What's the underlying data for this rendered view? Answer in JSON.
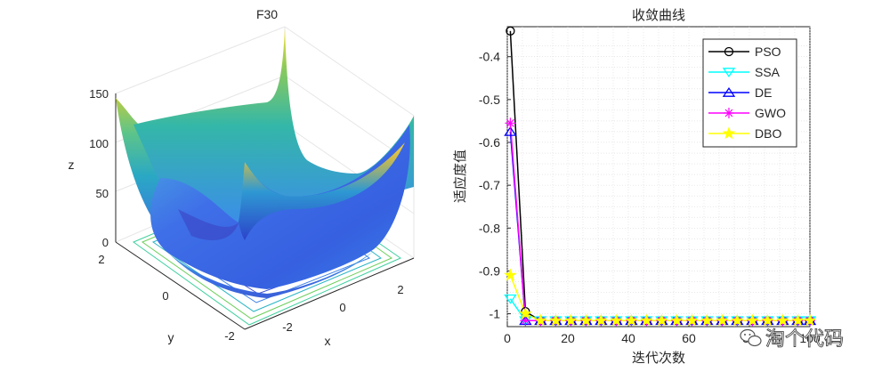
{
  "chart_data": [
    {
      "type": "surface3d",
      "title": "F30",
      "xlabel": "x",
      "ylabel": "y",
      "zlabel": "z",
      "x_ticks": [
        "-2",
        "0",
        "2"
      ],
      "y_ticks": [
        "-2",
        "0",
        "2"
      ],
      "z_ticks": [
        "0",
        "50",
        "100",
        "150"
      ],
      "xlim": [
        -3,
        3
      ],
      "ylim": [
        -3,
        3
      ],
      "zlim": [
        0,
        160
      ],
      "colormap": "parula",
      "contour_base": true
    },
    {
      "type": "line",
      "title": "收敛曲线",
      "xlabel": "迭代次数",
      "ylabel": "适应度值",
      "xlim": [
        0,
        100
      ],
      "ylim": [
        -1.03,
        -0.33
      ],
      "x_ticks": [
        "0",
        "20",
        "40",
        "60",
        "80",
        "100"
      ],
      "y_ticks": [
        "-0.4",
        "-0.5",
        "-0.6",
        "-0.7",
        "-0.8",
        "-0.9",
        "-1"
      ],
      "x_tick_values": [
        0,
        20,
        40,
        60,
        80,
        100
      ],
      "y_tick_values": [
        -0.4,
        -0.5,
        -0.6,
        -0.7,
        -0.8,
        -0.9,
        -1
      ],
      "grid": true,
      "legend_position": "top-right",
      "x": [
        1,
        6,
        11,
        16,
        21,
        26,
        31,
        36,
        41,
        46,
        51,
        56,
        61,
        66,
        71,
        76,
        81,
        86,
        91,
        96,
        100
      ],
      "series": [
        {
          "name": "PSO",
          "color": "#000000",
          "marker": "circle",
          "values": [
            -0.34,
            -0.995,
            -1.016,
            -1.016,
            -1.016,
            -1.016,
            -1.016,
            -1.016,
            -1.016,
            -1.016,
            -1.016,
            -1.016,
            -1.016,
            -1.016,
            -1.016,
            -1.016,
            -1.016,
            -1.016,
            -1.016,
            -1.016,
            -1.016
          ]
        },
        {
          "name": "SSA",
          "color": "#00ffff",
          "marker": "triangle-down",
          "values": [
            -0.965,
            -1.016,
            -1.016,
            -1.016,
            -1.016,
            -1.016,
            -1.016,
            -1.016,
            -1.016,
            -1.016,
            -1.016,
            -1.016,
            -1.016,
            -1.016,
            -1.016,
            -1.016,
            -1.016,
            -1.016,
            -1.016,
            -1.016,
            -1.016
          ]
        },
        {
          "name": "DE",
          "color": "#0000ff",
          "marker": "triangle-up",
          "values": [
            -0.575,
            -1.016,
            -1.016,
            -1.016,
            -1.016,
            -1.016,
            -1.016,
            -1.016,
            -1.016,
            -1.016,
            -1.016,
            -1.016,
            -1.016,
            -1.016,
            -1.016,
            -1.016,
            -1.016,
            -1.016,
            -1.016,
            -1.016,
            -1.016
          ]
        },
        {
          "name": "GWO",
          "color": "#ff00ff",
          "marker": "asterisk",
          "values": [
            -0.555,
            -1.016,
            -1.016,
            -1.016,
            -1.016,
            -1.016,
            -1.016,
            -1.016,
            -1.016,
            -1.016,
            -1.016,
            -1.016,
            -1.016,
            -1.016,
            -1.016,
            -1.016,
            -1.016,
            -1.016,
            -1.016,
            -1.016,
            -1.016
          ]
        },
        {
          "name": "DBO",
          "color": "#ffff00",
          "marker": "pentagram",
          "values": [
            -0.91,
            -1.0,
            -1.016,
            -1.016,
            -1.016,
            -1.016,
            -1.016,
            -1.016,
            -1.016,
            -1.016,
            -1.016,
            -1.016,
            -1.016,
            -1.016,
            -1.016,
            -1.016,
            -1.016,
            -1.016,
            -1.016,
            -1.016,
            -1.016
          ]
        }
      ]
    }
  ],
  "watermark": {
    "text": "淘个代码",
    "icon": "wechat-icon"
  }
}
